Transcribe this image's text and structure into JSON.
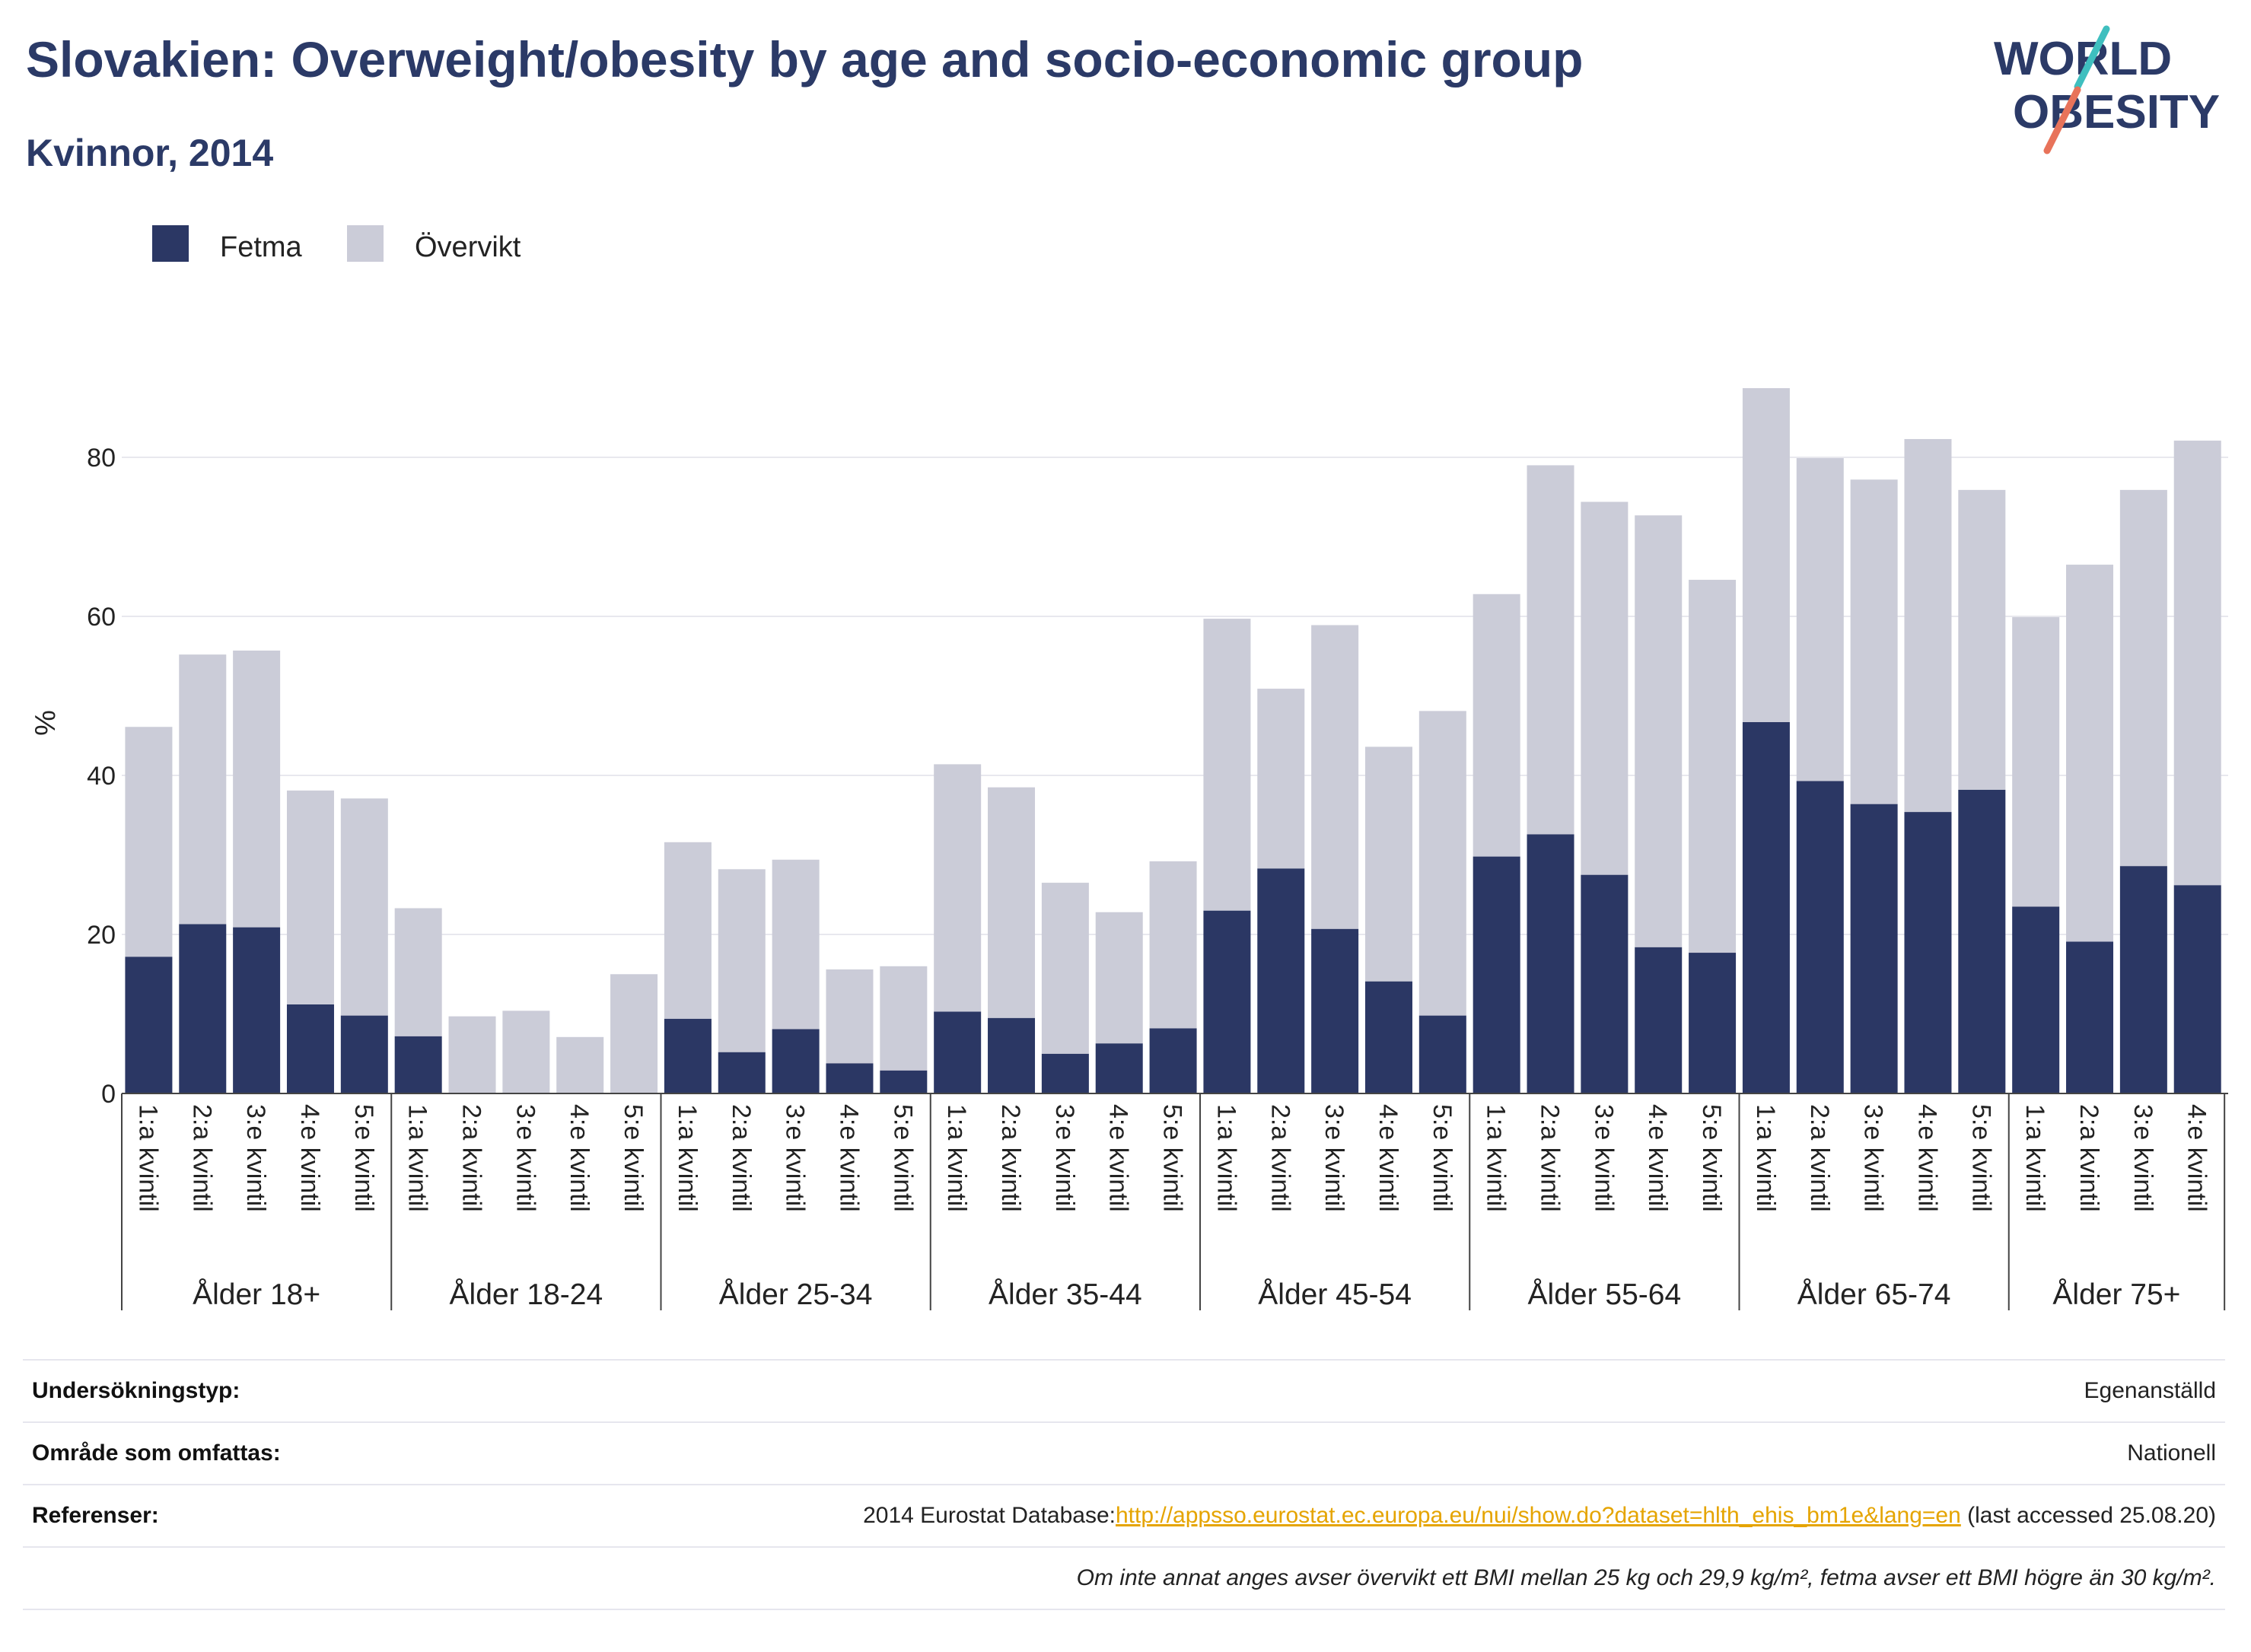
{
  "header": {
    "title": "Slovakien: Overweight/obesity by age and socio-economic group",
    "subtitle": "Kvinnor, 2014"
  },
  "logo": {
    "line1": "WORLD",
    "line2": "OBESITY",
    "colors": [
      "#2b3a67",
      "#3fbfbf",
      "#e8735a"
    ]
  },
  "chart_data": {
    "type": "bar",
    "stacked": true,
    "ylabel": "%",
    "ylim": [
      0,
      95
    ],
    "yticks": [
      0,
      20,
      40,
      60,
      80
    ],
    "grid": true,
    "legend_position": "top-left",
    "groups": [
      {
        "label": "Ålder 18+",
        "categories": [
          "1:a kvintil",
          "2:a kvintil",
          "3:e kvintil",
          "4:e kvintil",
          "5:e kvintil"
        ]
      },
      {
        "label": "Ålder 18-24",
        "categories": [
          "1:a kvintil",
          "2:a kvintil",
          "3:e kvintil",
          "4:e kvintil",
          "5:e kvintil"
        ]
      },
      {
        "label": "Ålder 25-34",
        "categories": [
          "1:a kvintil",
          "2:a kvintil",
          "3:e kvintil",
          "4:e kvintil",
          "5:e kvintil"
        ]
      },
      {
        "label": "Ålder 35-44",
        "categories": [
          "1:a kvintil",
          "2:a kvintil",
          "3:e kvintil",
          "4:e kvintil",
          "5:e kvintil"
        ]
      },
      {
        "label": "Ålder 45-54",
        "categories": [
          "1:a kvintil",
          "2:a kvintil",
          "3:e kvintil",
          "4:e kvintil",
          "5:e kvintil"
        ]
      },
      {
        "label": "Ålder 55-64",
        "categories": [
          "1:a kvintil",
          "2:a kvintil",
          "3:e kvintil",
          "4:e kvintil",
          "5:e kvintil"
        ]
      },
      {
        "label": "Ålder 65-74",
        "categories": [
          "1:a kvintil",
          "2:a kvintil",
          "3:e kvintil",
          "4:e kvintil",
          "5:e kvintil"
        ]
      },
      {
        "label": "Ålder 75+",
        "categories": [
          "1:a kvintil",
          "2:a kvintil",
          "3:e kvintil",
          "4:e kvintil"
        ]
      }
    ],
    "series": [
      {
        "name": "Fetma",
        "color": "#2b3764",
        "values": [
          17.2,
          21.3,
          20.9,
          11.2,
          9.8,
          7.2,
          0,
          0,
          0,
          0,
          9.4,
          5.2,
          8.1,
          3.8,
          2.9,
          10.3,
          9.5,
          5.0,
          6.3,
          8.2,
          23.0,
          28.3,
          20.7,
          14.1,
          9.8,
          29.8,
          32.6,
          27.5,
          18.4,
          17.7,
          46.7,
          39.3,
          36.4,
          35.4,
          38.2,
          23.5,
          19.1,
          28.6,
          26.2
        ]
      },
      {
        "name": "Övervikt",
        "color": "#cbccd8",
        "values": [
          28.9,
          33.9,
          34.8,
          26.9,
          27.3,
          16.1,
          9.7,
          10.4,
          7.1,
          15.0,
          22.2,
          23.0,
          21.3,
          11.8,
          13.1,
          31.1,
          29.0,
          21.5,
          16.5,
          21.0,
          36.7,
          22.6,
          38.2,
          29.5,
          38.3,
          33.0,
          46.4,
          46.9,
          54.3,
          46.9,
          42.0,
          40.6,
          40.8,
          46.9,
          37.7,
          36.4,
          47.4,
          47.3,
          55.9
        ]
      }
    ]
  },
  "info": {
    "rows": [
      {
        "label": "Undersökningstyp:",
        "value": "Egenanställd"
      },
      {
        "label": "Område som omfattas:",
        "value": "Nationell"
      },
      {
        "label": "Referenser:",
        "ref_prefix": "2014 Eurostat Database:",
        "ref_link": "http://appsso.eurostat.ec.europa.eu/nui/show.do?dataset=hlth_ehis_bm1e&lang=en",
        "ref_suffix": " (last accessed 25.08.20)"
      }
    ],
    "note": "Om inte annat anges avser övervikt ett BMI mellan 25 kg och 29,9 kg/m², fetma avser ett BMI högre än 30 kg/m²."
  }
}
